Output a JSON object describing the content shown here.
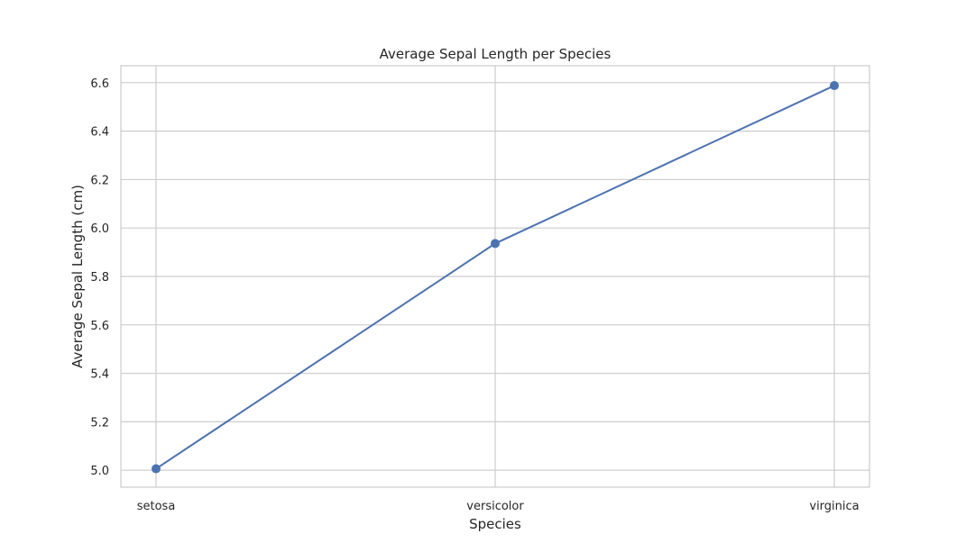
{
  "chart_data": {
    "type": "line",
    "title": "Average Sepal Length per Species",
    "xlabel": "Species",
    "ylabel": "Average Sepal Length (cm)",
    "categories": [
      "setosa",
      "versicolor",
      "virginica"
    ],
    "values": [
      5.006,
      5.936,
      6.588
    ],
    "ylim": [
      4.93,
      6.67
    ],
    "yticks": [
      "5.0",
      "5.2",
      "5.4",
      "5.6",
      "5.8",
      "6.0",
      "6.2",
      "6.4",
      "6.6"
    ],
    "grid": true,
    "line_color": "#4c72b0",
    "grid_color": "#cccccc",
    "frame_color": "#cccccc"
  }
}
